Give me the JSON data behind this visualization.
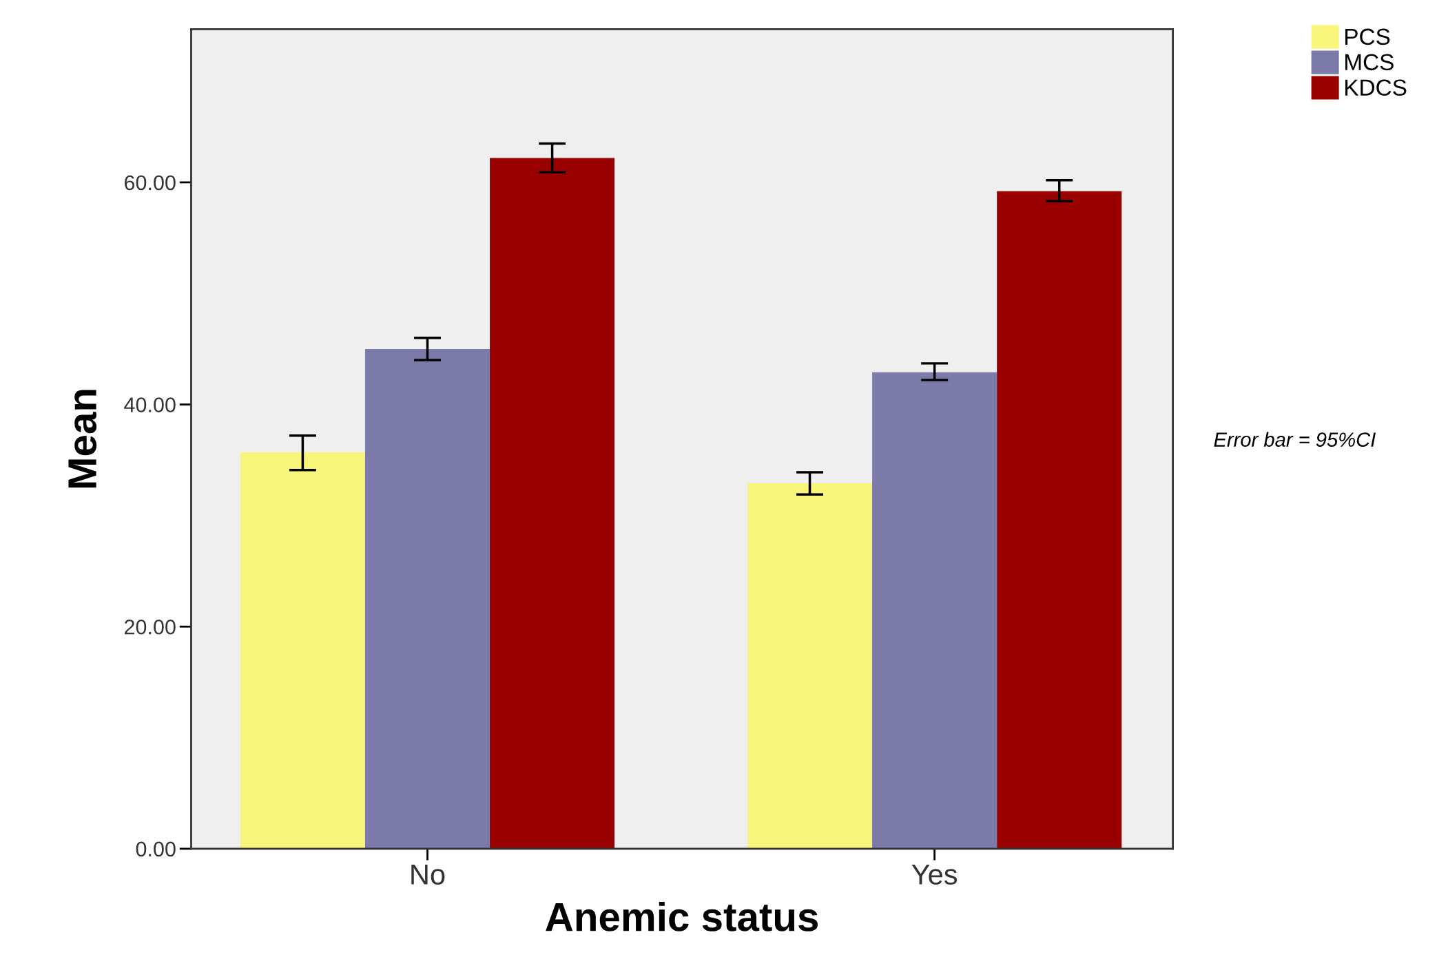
{
  "chart_data": {
    "type": "bar",
    "xlabel": "Anemic status",
    "ylabel": "Mean",
    "categories": [
      "No",
      "Yes"
    ],
    "series": [
      {
        "name": "PCS",
        "color": "#f8f57a",
        "values": [
          35.7,
          32.9
        ],
        "errors": [
          [
            34.1,
            37.2
          ],
          [
            31.9,
            33.9
          ]
        ]
      },
      {
        "name": "MCS",
        "color": "#7b7aa8",
        "values": [
          45.0,
          42.9
        ],
        "errors": [
          [
            44.0,
            46.0
          ],
          [
            42.2,
            43.7
          ]
        ]
      },
      {
        "name": "KDCS",
        "color": "#990000",
        "values": [
          62.2,
          59.2
        ],
        "errors": [
          [
            60.9,
            63.5
          ],
          [
            58.3,
            60.2
          ]
        ]
      }
    ],
    "ylim": [
      0,
      73.8
    ],
    "yticks": [
      {
        "value": 0,
        "label": "0.00"
      },
      {
        "value": 20,
        "label": "20.00"
      },
      {
        "value": 40,
        "label": "40.00"
      },
      {
        "value": 60,
        "label": "60.00"
      }
    ],
    "annotations": [
      "Error bar = 95%CI"
    ],
    "legend": "top right",
    "grid": false
  }
}
